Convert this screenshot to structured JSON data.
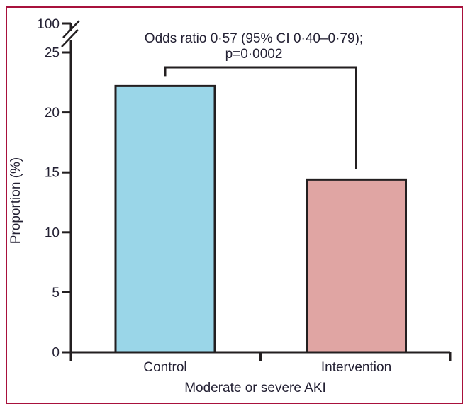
{
  "figure": {
    "border_color": "#A8113C",
    "background": "#FFFFFF",
    "text_color": "#232033"
  },
  "chart_data": {
    "type": "bar",
    "title": "",
    "categories": [
      "Control",
      "Intervention"
    ],
    "values": [
      22.2,
      14.4
    ],
    "bar_colors": [
      "#9AD6E8",
      "#E0A5A3"
    ],
    "bar_edge_color": "#231F20",
    "xlabel": "Moderate or severe AKI",
    "ylabel": "Proportion (%)",
    "y_ticks": [
      0,
      5,
      10,
      15,
      20,
      25
    ],
    "y_break_label": "100",
    "ylim_displayed": [
      0,
      25
    ],
    "y_axis_break_between": [
      25,
      100
    ],
    "grid": false,
    "legend": "none",
    "annotation": {
      "line1": "Odds ratio 0·57 (95% CI 0·40–0·79);",
      "line2": "p=0·0002"
    },
    "comparison": {
      "groups": [
        "Control",
        "Intervention"
      ],
      "odds_ratio": "0·57",
      "ci_95": "0·40–0·79",
      "p_value": "0·0002"
    }
  }
}
